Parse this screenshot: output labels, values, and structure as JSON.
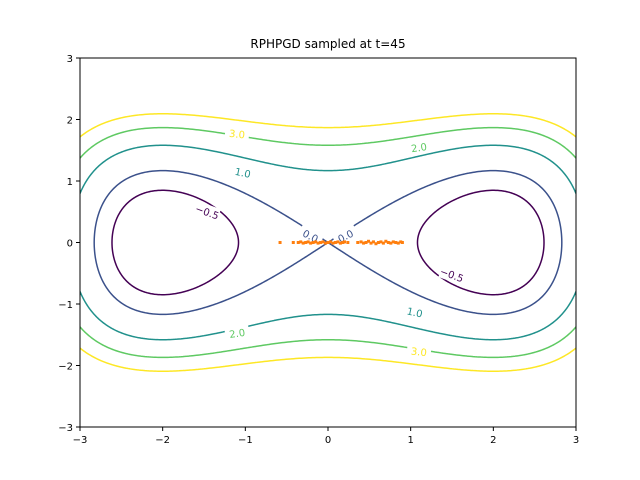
{
  "chart_data": {
    "type": "scatter",
    "title": "RPHPGD sampled at t=45",
    "xlabel": "",
    "ylabel": "",
    "xlim": [
      -3,
      3
    ],
    "ylim": [
      -3,
      3
    ],
    "xticks": [
      -3,
      -2,
      -1,
      0,
      1,
      2,
      3
    ],
    "yticks": [
      -3,
      -2,
      -1,
      0,
      1,
      2,
      3
    ],
    "xtick_labels": [
      "−3",
      "−2",
      "−1",
      "0",
      "1",
      "2",
      "3"
    ],
    "ytick_labels": [
      "−3",
      "−2",
      "−1",
      "0",
      "1",
      "2",
      "3"
    ],
    "grid": false,
    "contours": [
      {
        "level": -0.5,
        "label": "−0.5",
        "color": "#440154"
      },
      {
        "level": 0.0,
        "label": "0.0",
        "color": "#3b518b"
      },
      {
        "level": 1.0,
        "label": "1.0",
        "color": "#21918c"
      },
      {
        "level": 2.0,
        "label": "2.0",
        "color": "#5ec962"
      },
      {
        "level": 3.0,
        "label": "3.0",
        "color": "#fde725"
      }
    ],
    "contour_labels": [
      {
        "text": "3.0",
        "level": 3.0,
        "x": -1.1,
        "y": 1.77,
        "rotate": 6
      },
      {
        "text": "2.0",
        "level": 2.0,
        "x": 1.1,
        "y": 1.55,
        "rotate": -8
      },
      {
        "text": "1.0",
        "level": 1.0,
        "x": -1.03,
        "y": 1.14,
        "rotate": 12
      },
      {
        "text": "−0.5",
        "level": -0.5,
        "x": -1.46,
        "y": 0.5,
        "rotate": 20
      },
      {
        "text": "0.0",
        "level": 0.0,
        "x": -0.21,
        "y": 0.11,
        "rotate": 27
      },
      {
        "text": "0.0",
        "level": 0.0,
        "x": 0.21,
        "y": 0.11,
        "rotate": -27
      },
      {
        "text": "−0.5",
        "level": -0.5,
        "x": 1.5,
        "y": -0.52,
        "rotate": 20
      },
      {
        "text": "1.0",
        "level": 1.0,
        "x": 1.05,
        "y": -1.13,
        "rotate": 12
      },
      {
        "text": "2.0",
        "level": 2.0,
        "x": -1.1,
        "y": -1.47,
        "rotate": -8
      },
      {
        "text": "3.0",
        "level": 3.0,
        "x": 1.1,
        "y": -1.77,
        "rotate": 6
      }
    ],
    "scatter_color": "#ff7f0e",
    "scatter_points": [
      [
        -0.58,
        0.0
      ],
      [
        -0.42,
        0.0
      ],
      [
        -0.36,
        0.0
      ],
      [
        -0.33,
        0.01
      ],
      [
        -0.3,
        -0.01
      ],
      [
        -0.27,
        0.0
      ],
      [
        -0.24,
        0.01
      ],
      [
        -0.21,
        -0.01
      ],
      [
        -0.18,
        0.0
      ],
      [
        -0.15,
        0.01
      ],
      [
        -0.12,
        -0.01
      ],
      [
        -0.09,
        0.0
      ],
      [
        -0.06,
        0.01
      ],
      [
        -0.03,
        -0.01
      ],
      [
        0.0,
        0.0
      ],
      [
        0.03,
        0.01
      ],
      [
        0.06,
        -0.01
      ],
      [
        0.09,
        0.0
      ],
      [
        0.12,
        0.01
      ],
      [
        0.15,
        -0.01
      ],
      [
        0.18,
        0.0
      ],
      [
        0.2,
        0.01
      ],
      [
        0.24,
        0.0
      ],
      [
        0.36,
        0.0
      ],
      [
        0.4,
        0.01
      ],
      [
        0.43,
        -0.01
      ],
      [
        0.46,
        0.0
      ],
      [
        0.49,
        0.02
      ],
      [
        0.52,
        -0.01
      ],
      [
        0.55,
        0.01
      ],
      [
        0.58,
        -0.02
      ],
      [
        0.61,
        0.0
      ],
      [
        0.64,
        0.01
      ],
      [
        0.67,
        -0.01
      ],
      [
        0.7,
        0.02
      ],
      [
        0.73,
        0.0
      ],
      [
        0.76,
        -0.01
      ],
      [
        0.79,
        0.01
      ],
      [
        0.82,
        0.0
      ],
      [
        0.85,
        -0.01
      ],
      [
        0.88,
        0.01
      ],
      [
        0.9,
        0.0
      ]
    ]
  }
}
